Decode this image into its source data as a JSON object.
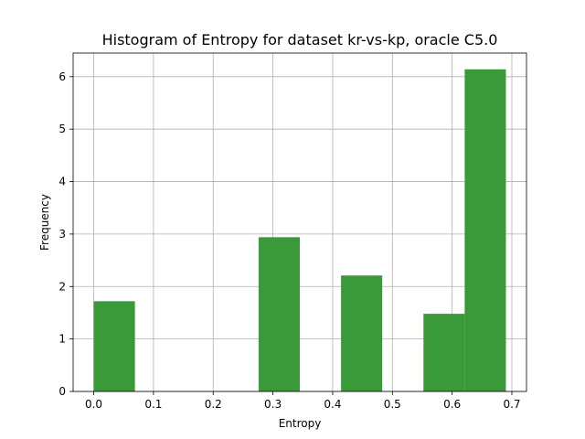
{
  "chart_data": {
    "type": "bar",
    "title": "Histogram of Entropy for dataset kr-vs-kp, oracle C5.0",
    "xlabel": "Entropy",
    "ylabel": "Frequency",
    "xlim": [
      -0.0345,
      0.7245
    ],
    "ylim": [
      0,
      6.45
    ],
    "grid": true,
    "bar_color": "#3a9a3a",
    "xticks": [
      {
        "value": 0.0,
        "label": "0.0"
      },
      {
        "value": 0.1,
        "label": "0.1"
      },
      {
        "value": 0.2,
        "label": "0.2"
      },
      {
        "value": 0.3,
        "label": "0.3"
      },
      {
        "value": 0.4,
        "label": "0.4"
      },
      {
        "value": 0.5,
        "label": "0.5"
      },
      {
        "value": 0.6,
        "label": "0.6"
      },
      {
        "value": 0.7,
        "label": "0.7"
      }
    ],
    "yticks": [
      {
        "value": 0,
        "label": "0"
      },
      {
        "value": 1,
        "label": "1"
      },
      {
        "value": 2,
        "label": "2"
      },
      {
        "value": 3,
        "label": "3"
      },
      {
        "value": 4,
        "label": "4"
      },
      {
        "value": 5,
        "label": "5"
      },
      {
        "value": 6,
        "label": "6"
      }
    ],
    "bins": [
      {
        "x0": 0.0,
        "x1": 0.069,
        "value": 1.72
      },
      {
        "x0": 0.069,
        "x1": 0.138,
        "value": 0
      },
      {
        "x0": 0.138,
        "x1": 0.207,
        "value": 0
      },
      {
        "x0": 0.207,
        "x1": 0.276,
        "value": 0
      },
      {
        "x0": 0.276,
        "x1": 0.345,
        "value": 2.94
      },
      {
        "x0": 0.345,
        "x1": 0.414,
        "value": 0
      },
      {
        "x0": 0.414,
        "x1": 0.483,
        "value": 2.21
      },
      {
        "x0": 0.483,
        "x1": 0.552,
        "value": 0
      },
      {
        "x0": 0.552,
        "x1": 0.621,
        "value": 1.48
      },
      {
        "x0": 0.621,
        "x1": 0.69,
        "value": 6.14
      }
    ]
  }
}
